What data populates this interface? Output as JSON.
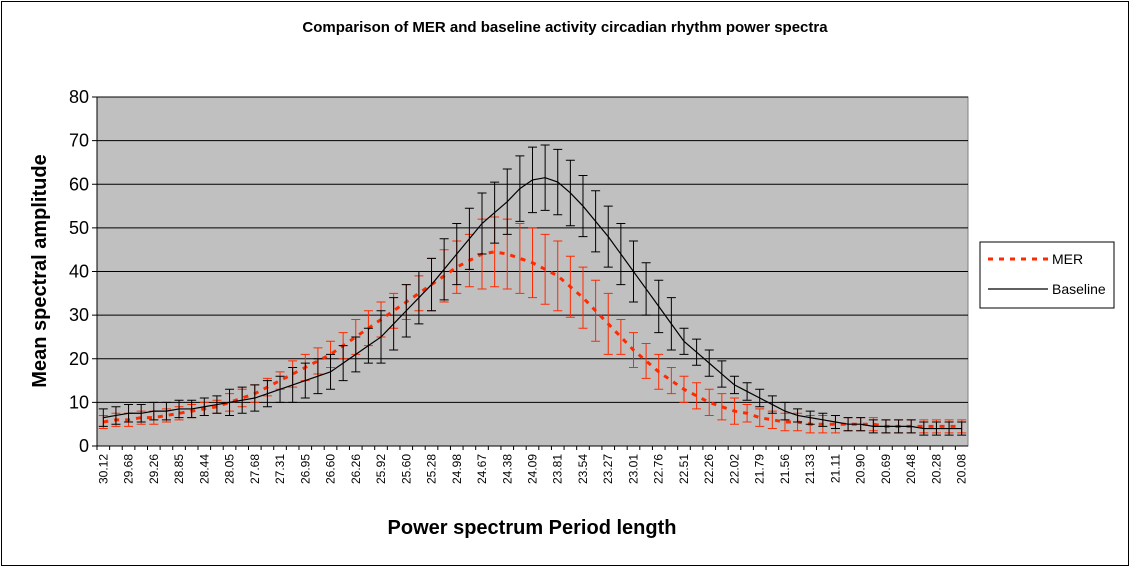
{
  "chart_data": {
    "type": "line",
    "title": "Comparison of MER and baseline activity circadian rhythm power spectra",
    "x_label": "Power spectrum Period length",
    "y_label": "Mean spectral amplitude",
    "categories": [
      "30.12",
      null,
      "29.68",
      null,
      "29.26",
      null,
      "28.85",
      null,
      "28.44",
      null,
      "28.05",
      null,
      "27.68",
      null,
      "27.31",
      null,
      "26.95",
      null,
      "26.60",
      null,
      "26.26",
      null,
      "25.92",
      null,
      "25.60",
      null,
      "25.28",
      null,
      "24.98",
      null,
      "24.67",
      null,
      "24.38",
      null,
      "24.09",
      null,
      "23.81",
      null,
      "23.54",
      null,
      "23.27",
      null,
      "23.01",
      null,
      "22.76",
      null,
      "22.51",
      null,
      "22.26",
      null,
      "22.02",
      null,
      "21.79",
      null,
      "21.56",
      null,
      "21.33",
      null,
      "21.11",
      null,
      "20.90",
      null,
      "20.69",
      null,
      "20.48",
      null,
      "20.28",
      null,
      "20.08"
    ],
    "series": [
      {
        "name": "MER",
        "color": "#ff2a00",
        "dashed": true,
        "values": [
          5.5,
          6,
          6,
          6.5,
          6.5,
          7,
          7.5,
          8,
          8.5,
          9,
          10,
          11,
          12,
          13.5,
          15,
          16.5,
          18,
          19.5,
          21,
          23,
          25,
          27,
          29,
          31,
          33,
          35,
          37,
          39,
          41,
          42.5,
          44,
          44.5,
          44,
          43,
          42,
          40.5,
          39,
          36.5,
          34,
          31,
          28,
          25,
          22,
          19.5,
          17,
          15,
          13,
          11.5,
          10,
          9,
          8,
          7.5,
          6.5,
          6,
          5.5,
          5.5,
          5,
          5,
          5,
          5,
          5,
          5,
          4.5,
          4.5,
          4.5,
          4.5,
          4.5,
          4.5,
          4.5
        ],
        "errors": [
          1.5,
          1.5,
          1.5,
          1.5,
          1.5,
          1.5,
          1.5,
          1.5,
          1.5,
          1.5,
          2,
          2,
          2,
          2,
          2,
          3,
          3,
          3,
          3,
          3,
          4,
          4,
          4,
          4,
          4,
          4,
          6,
          6,
          6,
          6,
          8,
          8,
          8,
          8,
          8,
          8,
          8,
          7,
          7,
          7,
          7,
          4,
          4,
          4,
          4,
          3,
          3,
          3,
          3,
          3,
          3,
          2,
          2,
          2,
          2,
          2,
          2,
          2,
          2,
          1.5,
          1.5,
          1.5,
          1.5,
          1.5,
          1.5,
          1.5,
          1.5,
          1.5,
          1.5
        ]
      },
      {
        "name": "Baseline",
        "color": "#000000",
        "dashed": false,
        "values": [
          6.5,
          7,
          7.5,
          7.5,
          8,
          8,
          8.5,
          8.5,
          9,
          9.5,
          10,
          10.5,
          11,
          12,
          13,
          14,
          15,
          16,
          17,
          19,
          21,
          23,
          25,
          28,
          31,
          34,
          37,
          40.5,
          44,
          47.5,
          51,
          53.5,
          56,
          59,
          61,
          61.5,
          60.5,
          58,
          55,
          51.5,
          48,
          44,
          40,
          36,
          32,
          28,
          24,
          21.5,
          19,
          16.5,
          14,
          12.5,
          11,
          9.5,
          8,
          7,
          6.5,
          6,
          5.5,
          5,
          5,
          4.5,
          4.5,
          4.5,
          4.5,
          4,
          4,
          4,
          4
        ],
        "errors": [
          2,
          2,
          2,
          2,
          2,
          2,
          2,
          2,
          2,
          2,
          3,
          3,
          3,
          3,
          3,
          4,
          4,
          4,
          4,
          4,
          4,
          4,
          6,
          6,
          6,
          6,
          6,
          7,
          7,
          7,
          7,
          7,
          7.5,
          7.5,
          7.5,
          7.5,
          7.5,
          7.5,
          7,
          7,
          7,
          7,
          7,
          6,
          6,
          6,
          3,
          3,
          3,
          3,
          2,
          2,
          2,
          2,
          2,
          1.5,
          1.5,
          1.5,
          1.5,
          1.5,
          1.5,
          1.5,
          1.5,
          1.5,
          1.5,
          1.5,
          1.5,
          1.5,
          1.5
        ]
      }
    ],
    "ylim": [
      0,
      80
    ],
    "yticks": [
      0,
      10,
      20,
      30,
      40,
      50,
      60,
      70,
      80
    ],
    "grid": true,
    "legend": "right",
    "plot_background": "#c0c0c0"
  }
}
